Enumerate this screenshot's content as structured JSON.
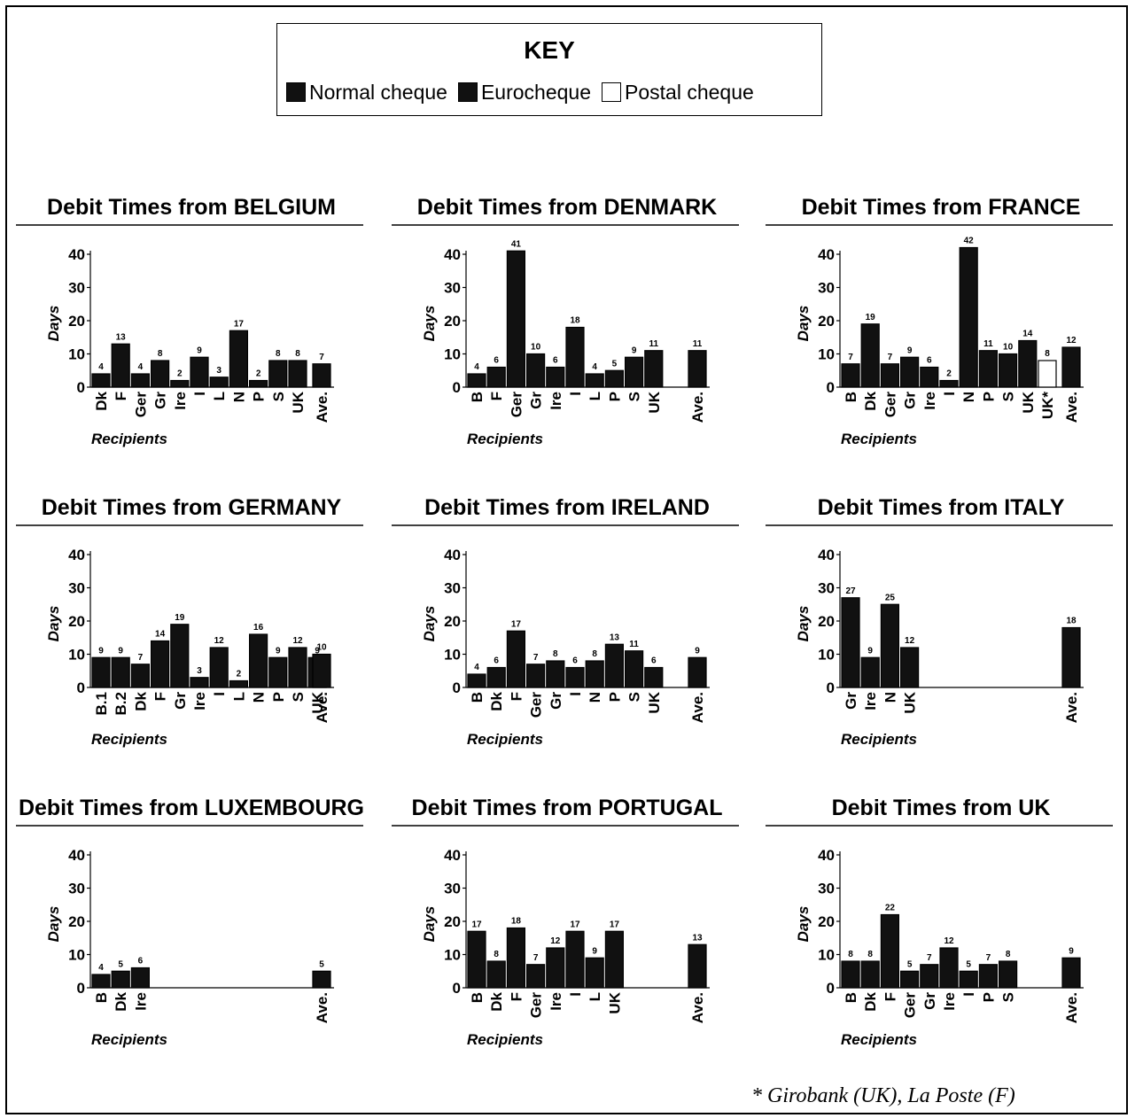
{
  "key": {
    "title": "KEY",
    "items": [
      {
        "label": "Normal cheque",
        "color": "#111111"
      },
      {
        "label": "Eurocheque",
        "color": "#111111"
      },
      {
        "label": "Postal cheque",
        "color": "#ffffff"
      }
    ]
  },
  "footnote": "* Girobank (UK), La Poste (F)",
  "chart_data": [
    {
      "type": "bar",
      "title": "Debit Times from BELGIUM",
      "ylabel": "Days",
      "xlabel": "Recipients",
      "ylim": [
        0,
        40
      ],
      "yticks": [
        0,
        10,
        20,
        30,
        40
      ],
      "categories": [
        "Dk",
        "F",
        "Ger",
        "Gr",
        "Ire",
        "I",
        "L",
        "N",
        "P",
        "S",
        "UK",
        "Ave."
      ],
      "values": [
        4,
        13,
        4,
        8,
        2,
        9,
        3,
        17,
        2,
        8,
        8,
        7
      ],
      "fills": [
        "#111",
        "#111",
        "#111",
        "#111",
        "#111",
        "#111",
        "#111",
        "#111",
        "#111",
        "#111",
        "#111",
        "#111"
      ]
    },
    {
      "type": "bar",
      "title": "Debit Times from DENMARK",
      "ylabel": "Days",
      "xlabel": "Recipients",
      "ylim": [
        0,
        40
      ],
      "yticks": [
        0,
        10,
        20,
        30,
        40
      ],
      "categories": [
        "B",
        "F",
        "Ger",
        "Gr",
        "Ire",
        "I",
        "L",
        "P",
        "S",
        "UK",
        "Ave."
      ],
      "values": [
        4,
        6,
        41,
        10,
        6,
        18,
        4,
        5,
        9,
        11,
        11
      ],
      "fills": [
        "#111",
        "#111",
        "#111",
        "#111",
        "#111",
        "#111",
        "#111",
        "#111",
        "#111",
        "#111",
        "#111"
      ]
    },
    {
      "type": "bar",
      "title": "Debit Times from FRANCE",
      "ylabel": "Days",
      "xlabel": "Recipients",
      "ylim": [
        0,
        40
      ],
      "yticks": [
        0,
        10,
        20,
        30,
        40
      ],
      "categories": [
        "B",
        "Dk",
        "Ger",
        "Gr",
        "Ire",
        "I",
        "N",
        "P",
        "S",
        "UK",
        "UK*",
        "Ave."
      ],
      "values": [
        7,
        19,
        7,
        9,
        6,
        2,
        42,
        11,
        10,
        14,
        8,
        12
      ],
      "fills": [
        "#111",
        "#111",
        "#111",
        "#111",
        "#111",
        "#111",
        "#111",
        "#111",
        "#111",
        "#111",
        "#fff",
        "#111"
      ]
    },
    {
      "type": "bar",
      "title": "Debit Times from GERMANY",
      "ylabel": "Days",
      "xlabel": "Recipients",
      "ylim": [
        0,
        40
      ],
      "yticks": [
        0,
        10,
        20,
        30,
        40
      ],
      "categories": [
        "B.1",
        "B.2",
        "Dk",
        "F",
        "Gr",
        "Ire",
        "I",
        "L",
        "N",
        "P",
        "S",
        "UK",
        "Ave."
      ],
      "values": [
        9,
        9,
        7,
        14,
        19,
        3,
        12,
        2,
        16,
        9,
        12,
        9,
        10
      ],
      "fills": [
        "#111",
        "#111",
        "#111",
        "#111",
        "#111",
        "#111",
        "#111",
        "#111",
        "#111",
        "#111",
        "#111",
        "#111",
        "#111"
      ]
    },
    {
      "type": "bar",
      "title": "Debit Times from IRELAND",
      "ylabel": "Days",
      "xlabel": "Recipients",
      "ylim": [
        0,
        40
      ],
      "yticks": [
        0,
        10,
        20,
        30,
        40
      ],
      "categories": [
        "B",
        "Dk",
        "F",
        "Ger",
        "Gr",
        "I",
        "N",
        "P",
        "S",
        "UK",
        "Ave."
      ],
      "values": [
        4,
        6,
        17,
        7,
        8,
        6,
        8,
        13,
        11,
        6,
        9
      ],
      "fills": [
        "#111",
        "#111",
        "#111",
        "#111",
        "#111",
        "#111",
        "#111",
        "#111",
        "#111",
        "#111",
        "#111"
      ]
    },
    {
      "type": "bar",
      "title": "Debit Times from ITALY",
      "ylabel": "Days",
      "xlabel": "Recipients",
      "ylim": [
        0,
        40
      ],
      "yticks": [
        0,
        10,
        20,
        30,
        40
      ],
      "categories": [
        "Gr",
        "Ire",
        "N",
        "UK",
        "Ave."
      ],
      "values": [
        27,
        9,
        25,
        12,
        18
      ],
      "fills": [
        "#111",
        "#111",
        "#111",
        "#111",
        "#111"
      ]
    },
    {
      "type": "bar",
      "title": "Debit Times from LUXEMBOURG",
      "ylabel": "Days",
      "xlabel": "Recipients",
      "ylim": [
        0,
        40
      ],
      "yticks": [
        0,
        10,
        20,
        30,
        40
      ],
      "categories": [
        "B",
        "Dk",
        "Ire",
        "Ave."
      ],
      "values": [
        4,
        5,
        6,
        5
      ],
      "fills": [
        "#111",
        "#111",
        "#111",
        "#111"
      ]
    },
    {
      "type": "bar",
      "title": "Debit Times from PORTUGAL",
      "ylabel": "Days",
      "xlabel": "Recipients",
      "ylim": [
        0,
        40
      ],
      "yticks": [
        0,
        10,
        20,
        30,
        40
      ],
      "categories": [
        "B",
        "Dk",
        "F",
        "Ger",
        "Ire",
        "I",
        "L",
        "UK",
        "Ave."
      ],
      "values": [
        17,
        8,
        18,
        7,
        12,
        17,
        9,
        17,
        13
      ],
      "fills": [
        "#111",
        "#111",
        "#111",
        "#111",
        "#111",
        "#111",
        "#111",
        "#111",
        "#111"
      ]
    },
    {
      "type": "bar",
      "title": "Debit Times from UK",
      "ylabel": "Days",
      "xlabel": "Recipients",
      "ylim": [
        0,
        40
      ],
      "yticks": [
        0,
        10,
        20,
        30,
        40
      ],
      "categories": [
        "B",
        "Dk",
        "F",
        "Ger",
        "Gr",
        "Ire",
        "I",
        "P",
        "S",
        "Ave."
      ],
      "values": [
        8,
        8,
        22,
        5,
        7,
        12,
        5,
        7,
        8,
        9
      ],
      "fills": [
        "#111",
        "#111",
        "#111",
        "#111",
        "#111",
        "#111",
        "#111",
        "#111",
        "#111",
        "#111"
      ]
    }
  ]
}
